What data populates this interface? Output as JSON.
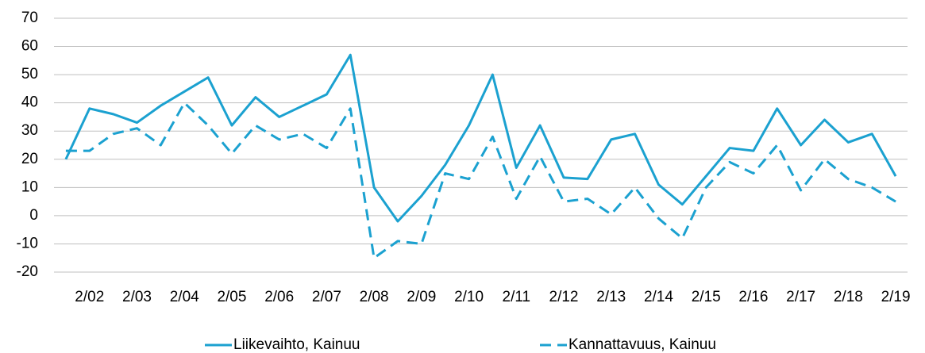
{
  "chart_data": {
    "type": "line",
    "categories": [
      null,
      "2/02",
      null,
      "2/03",
      null,
      "2/04",
      null,
      "2/05",
      null,
      "2/06",
      null,
      "2/07",
      null,
      "2/08",
      null,
      "2/09",
      null,
      "2/10",
      null,
      "2/11",
      null,
      "2/12",
      null,
      "2/13",
      null,
      "2/14",
      null,
      "2/15",
      null,
      "2/16",
      null,
      "2/17",
      null,
      "2/18",
      null,
      "2/19"
    ],
    "series": [
      {
        "name": "Liikevaihto, Kainuu",
        "color": "#1ba1d0",
        "style": "solid",
        "values": [
          20,
          38,
          36,
          33,
          39,
          44,
          49,
          32,
          42,
          35,
          39,
          43,
          57,
          10,
          -2,
          7,
          18,
          32,
          50,
          17,
          32,
          13.5,
          13,
          27,
          29,
          11,
          4,
          14,
          24,
          23,
          38,
          25,
          34,
          26,
          29,
          14
        ]
      },
      {
        "name": "Kannattavuus, Kainuu",
        "color": "#1ba1d0",
        "style": "dashed",
        "values": [
          23,
          23,
          29,
          31,
          25,
          40,
          32,
          22,
          32,
          27,
          29,
          24,
          38,
          -15,
          -9,
          -10,
          15,
          13,
          28,
          6,
          21,
          5,
          6,
          0.5,
          10,
          -1,
          -8,
          10,
          19,
          15,
          25,
          9,
          20,
          13,
          10,
          5
        ]
      }
    ],
    "ylim": [
      -20,
      70
    ],
    "yticks": [
      -20,
      -10,
      0,
      10,
      20,
      30,
      40,
      50,
      60,
      70
    ],
    "grid": true,
    "legend": "bottom"
  }
}
